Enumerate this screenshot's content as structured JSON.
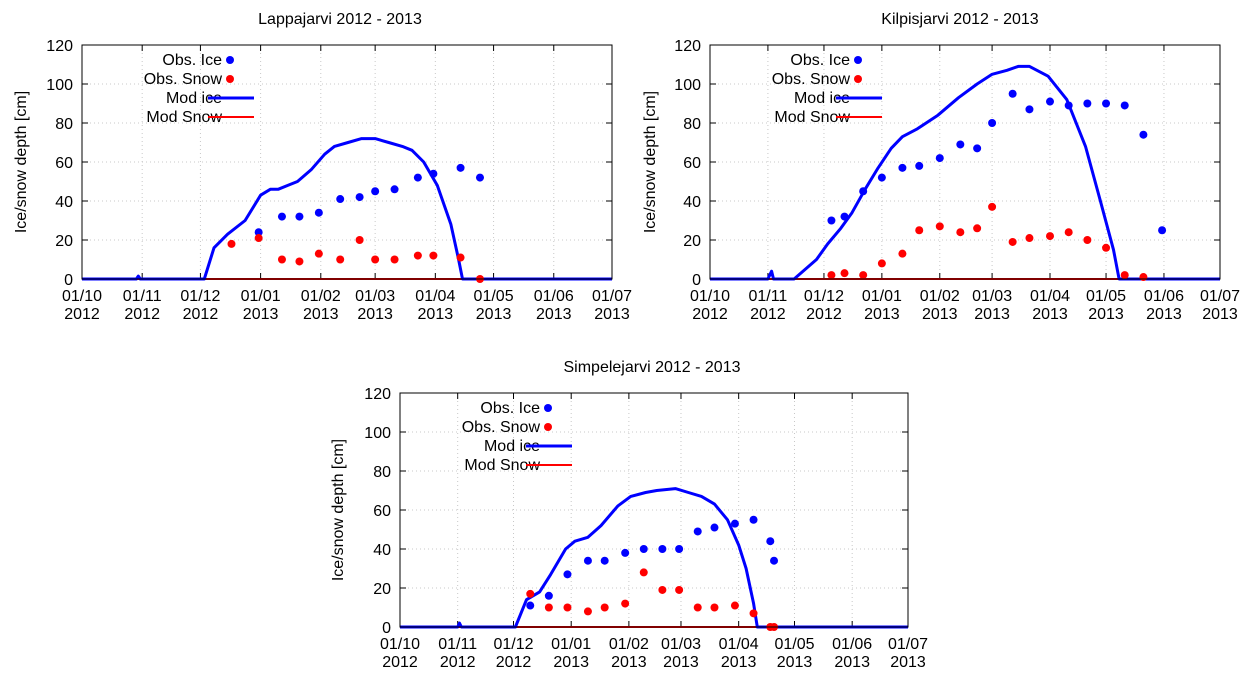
{
  "chart_data": [
    {
      "type": "line",
      "title": "Lappajarvi 2012 - 2013",
      "ylabel": "Ice/snow depth [cm]",
      "xlabel": "",
      "ylim": [
        0,
        120
      ],
      "yticks": [
        0,
        20,
        40,
        60,
        80,
        100,
        120
      ],
      "xlim": [
        "2012-10-01",
        "2013-07-01"
      ],
      "xticks": [
        {
          "date": "2012-10-01",
          "line1": "01/10",
          "line2": "2012"
        },
        {
          "date": "2012-11-01",
          "line1": "01/11",
          "line2": "2012"
        },
        {
          "date": "2012-12-01",
          "line1": "01/12",
          "line2": "2012"
        },
        {
          "date": "2013-01-01",
          "line1": "01/01",
          "line2": "2013"
        },
        {
          "date": "2013-02-01",
          "line1": "01/02",
          "line2": "2013"
        },
        {
          "date": "2013-03-01",
          "line1": "01/03",
          "line2": "2013"
        },
        {
          "date": "2013-04-01",
          "line1": "01/04",
          "line2": "2013"
        },
        {
          "date": "2013-05-01",
          "line1": "01/05",
          "line2": "2013"
        },
        {
          "date": "2013-06-01",
          "line1": "01/06",
          "line2": "2013"
        },
        {
          "date": "2013-07-01",
          "line1": "01/07",
          "line2": "2013"
        }
      ],
      "grid": true,
      "legend_position": "top-left",
      "series": [
        {
          "name": "Obs. Ice",
          "kind": "points",
          "color": "#0000ff",
          "points": [
            [
              "2012-12-31",
              24
            ],
            [
              "2013-01-12",
              32
            ],
            [
              "2013-01-21",
              32
            ],
            [
              "2013-01-31",
              34
            ],
            [
              "2013-02-11",
              41
            ],
            [
              "2013-02-21",
              42
            ],
            [
              "2013-03-01",
              45
            ],
            [
              "2013-03-11",
              46
            ],
            [
              "2013-03-23",
              52
            ],
            [
              "2013-03-31",
              54
            ],
            [
              "2013-04-14",
              57
            ],
            [
              "2013-04-24",
              52
            ]
          ]
        },
        {
          "name": "Obs. Snow",
          "kind": "points",
          "color": "#ff0000",
          "points": [
            [
              "2012-12-17",
              18
            ],
            [
              "2012-12-31",
              21
            ],
            [
              "2013-01-12",
              10
            ],
            [
              "2013-01-21",
              9
            ],
            [
              "2013-01-31",
              13
            ],
            [
              "2013-02-11",
              10
            ],
            [
              "2013-02-21",
              20
            ],
            [
              "2013-03-01",
              10
            ],
            [
              "2013-03-11",
              10
            ],
            [
              "2013-03-23",
              12
            ],
            [
              "2013-03-31",
              12
            ],
            [
              "2013-04-14",
              11
            ],
            [
              "2013-04-24",
              0
            ]
          ]
        },
        {
          "name": "Mod ice",
          "kind": "line",
          "color": "#0000ff",
          "points": [
            [
              "2012-10-01",
              0
            ],
            [
              "2012-10-29",
              0
            ],
            [
              "2012-10-30",
              1.5
            ],
            [
              "2012-10-31",
              0
            ],
            [
              "2012-12-03",
              0
            ],
            [
              "2012-12-08",
              16
            ],
            [
              "2012-12-15",
              23
            ],
            [
              "2012-12-24",
              30
            ],
            [
              "2013-01-01",
              43
            ],
            [
              "2013-01-06",
              46
            ],
            [
              "2013-01-10",
              46
            ],
            [
              "2013-01-15",
              48
            ],
            [
              "2013-01-20",
              50
            ],
            [
              "2013-01-27",
              56
            ],
            [
              "2013-02-03",
              64
            ],
            [
              "2013-02-08",
              68
            ],
            [
              "2013-02-15",
              70
            ],
            [
              "2013-02-22",
              72
            ],
            [
              "2013-03-01",
              72
            ],
            [
              "2013-03-08",
              70
            ],
            [
              "2013-03-15",
              68
            ],
            [
              "2013-03-20",
              66
            ],
            [
              "2013-03-26",
              60
            ],
            [
              "2013-04-02",
              48
            ],
            [
              "2013-04-09",
              28
            ],
            [
              "2013-04-13",
              10
            ],
            [
              "2013-04-15",
              0
            ],
            [
              "2013-07-01",
              0
            ]
          ]
        },
        {
          "name": "Mod Snow",
          "kind": "line",
          "color": "#ff0000",
          "points": [
            [
              "2012-10-01",
              0
            ],
            [
              "2013-07-01",
              0
            ]
          ]
        }
      ]
    },
    {
      "type": "line",
      "title": "Kilpisjarvi 2012 - 2013",
      "ylabel": "Ice/snow depth [cm]",
      "xlabel": "",
      "ylim": [
        0,
        120
      ],
      "yticks": [
        0,
        20,
        40,
        60,
        80,
        100,
        120
      ],
      "xlim": [
        "2012-10-01",
        "2013-07-01"
      ],
      "xticks": [
        {
          "date": "2012-10-01",
          "line1": "01/10",
          "line2": "2012"
        },
        {
          "date": "2012-11-01",
          "line1": "01/11",
          "line2": "2012"
        },
        {
          "date": "2012-12-01",
          "line1": "01/12",
          "line2": "2012"
        },
        {
          "date": "2013-01-01",
          "line1": "01/01",
          "line2": "2013"
        },
        {
          "date": "2013-02-01",
          "line1": "01/02",
          "line2": "2013"
        },
        {
          "date": "2013-03-01",
          "line1": "01/03",
          "line2": "2013"
        },
        {
          "date": "2013-04-01",
          "line1": "01/04",
          "line2": "2013"
        },
        {
          "date": "2013-05-01",
          "line1": "01/05",
          "line2": "2013"
        },
        {
          "date": "2013-06-01",
          "line1": "01/06",
          "line2": "2013"
        },
        {
          "date": "2013-07-01",
          "line1": "01/07",
          "line2": "2013"
        }
      ],
      "grid": true,
      "legend_position": "top-left",
      "series": [
        {
          "name": "Obs. Ice",
          "kind": "points",
          "color": "#0000ff",
          "points": [
            [
              "2012-12-05",
              30
            ],
            [
              "2012-12-12",
              32
            ],
            [
              "2012-12-22",
              45
            ],
            [
              "2013-01-01",
              52
            ],
            [
              "2013-01-12",
              57
            ],
            [
              "2013-01-21",
              58
            ],
            [
              "2013-02-01",
              62
            ],
            [
              "2013-02-12",
              69
            ],
            [
              "2013-02-21",
              67
            ],
            [
              "2013-03-01",
              80
            ],
            [
              "2013-03-12",
              95
            ],
            [
              "2013-03-21",
              87
            ],
            [
              "2013-04-01",
              91
            ],
            [
              "2013-04-11",
              89
            ],
            [
              "2013-04-21",
              90
            ],
            [
              "2013-05-01",
              90
            ],
            [
              "2013-05-11",
              89
            ],
            [
              "2013-05-21",
              74
            ],
            [
              "2013-05-31",
              25
            ]
          ]
        },
        {
          "name": "Obs. Snow",
          "kind": "points",
          "color": "#ff0000",
          "points": [
            [
              "2012-12-05",
              2
            ],
            [
              "2012-12-12",
              3
            ],
            [
              "2012-12-22",
              2
            ],
            [
              "2013-01-01",
              8
            ],
            [
              "2013-01-12",
              13
            ],
            [
              "2013-01-21",
              25
            ],
            [
              "2013-02-01",
              27
            ],
            [
              "2013-02-12",
              24
            ],
            [
              "2013-02-21",
              26
            ],
            [
              "2013-03-01",
              37
            ],
            [
              "2013-03-12",
              19
            ],
            [
              "2013-03-21",
              21
            ],
            [
              "2013-04-01",
              22
            ],
            [
              "2013-04-11",
              24
            ],
            [
              "2013-04-21",
              20
            ],
            [
              "2013-05-01",
              16
            ],
            [
              "2013-05-11",
              2
            ],
            [
              "2013-05-21",
              1
            ]
          ]
        },
        {
          "name": "Mod ice",
          "kind": "line",
          "color": "#0000ff",
          "points": [
            [
              "2012-10-01",
              0
            ],
            [
              "2012-11-01",
              0
            ],
            [
              "2012-11-03",
              4
            ],
            [
              "2012-11-04",
              0
            ],
            [
              "2012-11-15",
              0
            ],
            [
              "2012-11-21",
              5
            ],
            [
              "2012-11-27",
              10
            ],
            [
              "2012-12-03",
              18
            ],
            [
              "2012-12-10",
              26
            ],
            [
              "2012-12-16",
              34
            ],
            [
              "2012-12-23",
              46
            ],
            [
              "2012-12-30",
              57
            ],
            [
              "2013-01-06",
              67
            ],
            [
              "2013-01-12",
              73
            ],
            [
              "2013-01-20",
              77
            ],
            [
              "2013-01-31",
              84
            ],
            [
              "2013-02-11",
              93
            ],
            [
              "2013-02-21",
              100
            ],
            [
              "2013-03-01",
              105
            ],
            [
              "2013-03-09",
              107
            ],
            [
              "2013-03-15",
              109
            ],
            [
              "2013-03-21",
              109
            ],
            [
              "2013-03-31",
              104
            ],
            [
              "2013-04-10",
              92
            ],
            [
              "2013-04-20",
              68
            ],
            [
              "2013-04-28",
              40
            ],
            [
              "2013-05-05",
              15
            ],
            [
              "2013-05-08",
              0
            ],
            [
              "2013-07-01",
              0
            ]
          ]
        },
        {
          "name": "Mod Snow",
          "kind": "line",
          "color": "#ff0000",
          "points": [
            [
              "2012-10-01",
              0
            ],
            [
              "2013-07-01",
              0
            ]
          ]
        }
      ]
    },
    {
      "type": "line",
      "title": "Simpelejarvi 2012 - 2013",
      "ylabel": "Ice/snow depth [cm]",
      "xlabel": "",
      "ylim": [
        0,
        120
      ],
      "yticks": [
        0,
        20,
        40,
        60,
        80,
        100,
        120
      ],
      "xlim": [
        "2012-10-01",
        "2013-07-01"
      ],
      "xticks": [
        {
          "date": "2012-10-01",
          "line1": "01/10",
          "line2": "2012"
        },
        {
          "date": "2012-11-01",
          "line1": "01/11",
          "line2": "2012"
        },
        {
          "date": "2012-12-01",
          "line1": "01/12",
          "line2": "2012"
        },
        {
          "date": "2013-01-01",
          "line1": "01/01",
          "line2": "2013"
        },
        {
          "date": "2013-02-01",
          "line1": "01/02",
          "line2": "2013"
        },
        {
          "date": "2013-03-01",
          "line1": "01/03",
          "line2": "2013"
        },
        {
          "date": "2013-04-01",
          "line1": "01/04",
          "line2": "2013"
        },
        {
          "date": "2013-05-01",
          "line1": "01/05",
          "line2": "2013"
        },
        {
          "date": "2013-06-01",
          "line1": "01/06",
          "line2": "2013"
        },
        {
          "date": "2013-07-01",
          "line1": "01/07",
          "line2": "2013"
        }
      ],
      "grid": true,
      "legend_position": "top-left",
      "series": [
        {
          "name": "Obs. Ice",
          "kind": "points",
          "color": "#0000ff",
          "points": [
            [
              "2012-12-10",
              11
            ],
            [
              "2012-12-20",
              16
            ],
            [
              "2012-12-30",
              27
            ],
            [
              "2013-01-10",
              34
            ],
            [
              "2013-01-19",
              34
            ],
            [
              "2013-01-30",
              38
            ],
            [
              "2013-02-09",
              40
            ],
            [
              "2013-02-19",
              40
            ],
            [
              "2013-02-28",
              40
            ],
            [
              "2013-03-10",
              49
            ],
            [
              "2013-03-19",
              51
            ],
            [
              "2013-03-30",
              53
            ],
            [
              "2013-04-09",
              55
            ],
            [
              "2013-04-18",
              44
            ],
            [
              "2013-04-20",
              34
            ]
          ]
        },
        {
          "name": "Obs. Snow",
          "kind": "points",
          "color": "#ff0000",
          "points": [
            [
              "2012-12-10",
              17
            ],
            [
              "2012-12-20",
              10
            ],
            [
              "2012-12-30",
              10
            ],
            [
              "2013-01-10",
              8
            ],
            [
              "2013-01-19",
              10
            ],
            [
              "2013-01-30",
              12
            ],
            [
              "2013-02-09",
              28
            ],
            [
              "2013-02-19",
              19
            ],
            [
              "2013-02-28",
              19
            ],
            [
              "2013-03-10",
              10
            ],
            [
              "2013-03-19",
              10
            ],
            [
              "2013-03-30",
              11
            ],
            [
              "2013-04-09",
              7
            ],
            [
              "2013-04-18",
              0
            ],
            [
              "2013-04-20",
              0
            ]
          ]
        },
        {
          "name": "Mod ice",
          "kind": "line",
          "color": "#0000ff",
          "points": [
            [
              "2012-10-01",
              0
            ],
            [
              "2012-11-01",
              0
            ],
            [
              "2012-11-02",
              2
            ],
            [
              "2012-11-03",
              0
            ],
            [
              "2012-12-02",
              0
            ],
            [
              "2012-12-08",
              14
            ],
            [
              "2012-12-15",
              18
            ],
            [
              "2012-12-21",
              27
            ],
            [
              "2012-12-29",
              40
            ],
            [
              "2013-01-03",
              44
            ],
            [
              "2013-01-10",
              46
            ],
            [
              "2013-01-17",
              52
            ],
            [
              "2013-01-26",
              62
            ],
            [
              "2013-02-02",
              67
            ],
            [
              "2013-02-10",
              69
            ],
            [
              "2013-02-16",
              70
            ],
            [
              "2013-02-26",
              71
            ],
            [
              "2013-03-05",
              69
            ],
            [
              "2013-03-12",
              67
            ],
            [
              "2013-03-19",
              63
            ],
            [
              "2013-03-26",
              55
            ],
            [
              "2013-04-01",
              42
            ],
            [
              "2013-04-05",
              30
            ],
            [
              "2013-04-09",
              12
            ],
            [
              "2013-04-11",
              0
            ],
            [
              "2013-07-01",
              0
            ]
          ]
        },
        {
          "name": "Mod Snow",
          "kind": "line",
          "color": "#ff0000",
          "points": [
            [
              "2012-10-01",
              0
            ],
            [
              "2013-07-01",
              0
            ]
          ]
        }
      ]
    }
  ]
}
